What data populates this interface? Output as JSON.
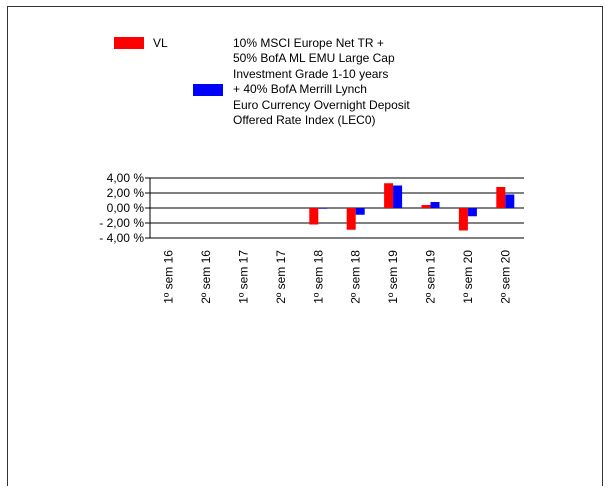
{
  "legend": {
    "series_a_label": "VL",
    "series_b_label_lines": [
      "10% MSCI Europe Net TR +",
      "50% BofA ML EMU Large Cap",
      "Investment Grade 1-10 years",
      "+ 40% BofA Merrill Lynch",
      "Euro Currency Overnight Deposit",
      "Offered Rate Index (LEC0)"
    ]
  },
  "chart_data": {
    "type": "bar",
    "title": "",
    "xlabel": "",
    "ylabel": "",
    "ylim": [
      -4,
      4
    ],
    "yticks": [
      4,
      2,
      0,
      -2,
      -4
    ],
    "ytick_labels": [
      "4,00 %",
      "2,00 %",
      "0,00 %",
      "- 2,00 %",
      "- 4,00 %"
    ],
    "grid": true,
    "legend_position": "top",
    "categories": [
      "1º sem 16",
      "2º sem 16",
      "1º sem 17",
      "2º sem 17",
      "1º sem 18",
      "2º sem 18",
      "1º sem 19",
      "2º sem 19",
      "1º sem 20",
      "2º sem 20"
    ],
    "series": [
      {
        "name": "VL",
        "color": "#ff0000",
        "values": [
          null,
          null,
          null,
          null,
          -2.2,
          -2.9,
          3.3,
          0.4,
          -3.0,
          2.8
        ]
      },
      {
        "name": "10% MSCI Europe Net TR + 50% BofA ML EMU Large Cap Investment Grade 1-10 years + 40% BofA Merrill Lynch Euro Currency Overnight Deposit Offered Rate Index (LEC0)",
        "color": "#0000ff",
        "values": [
          null,
          null,
          null,
          null,
          -0.1,
          -0.9,
          3.0,
          0.8,
          -1.1,
          1.8
        ]
      }
    ]
  }
}
